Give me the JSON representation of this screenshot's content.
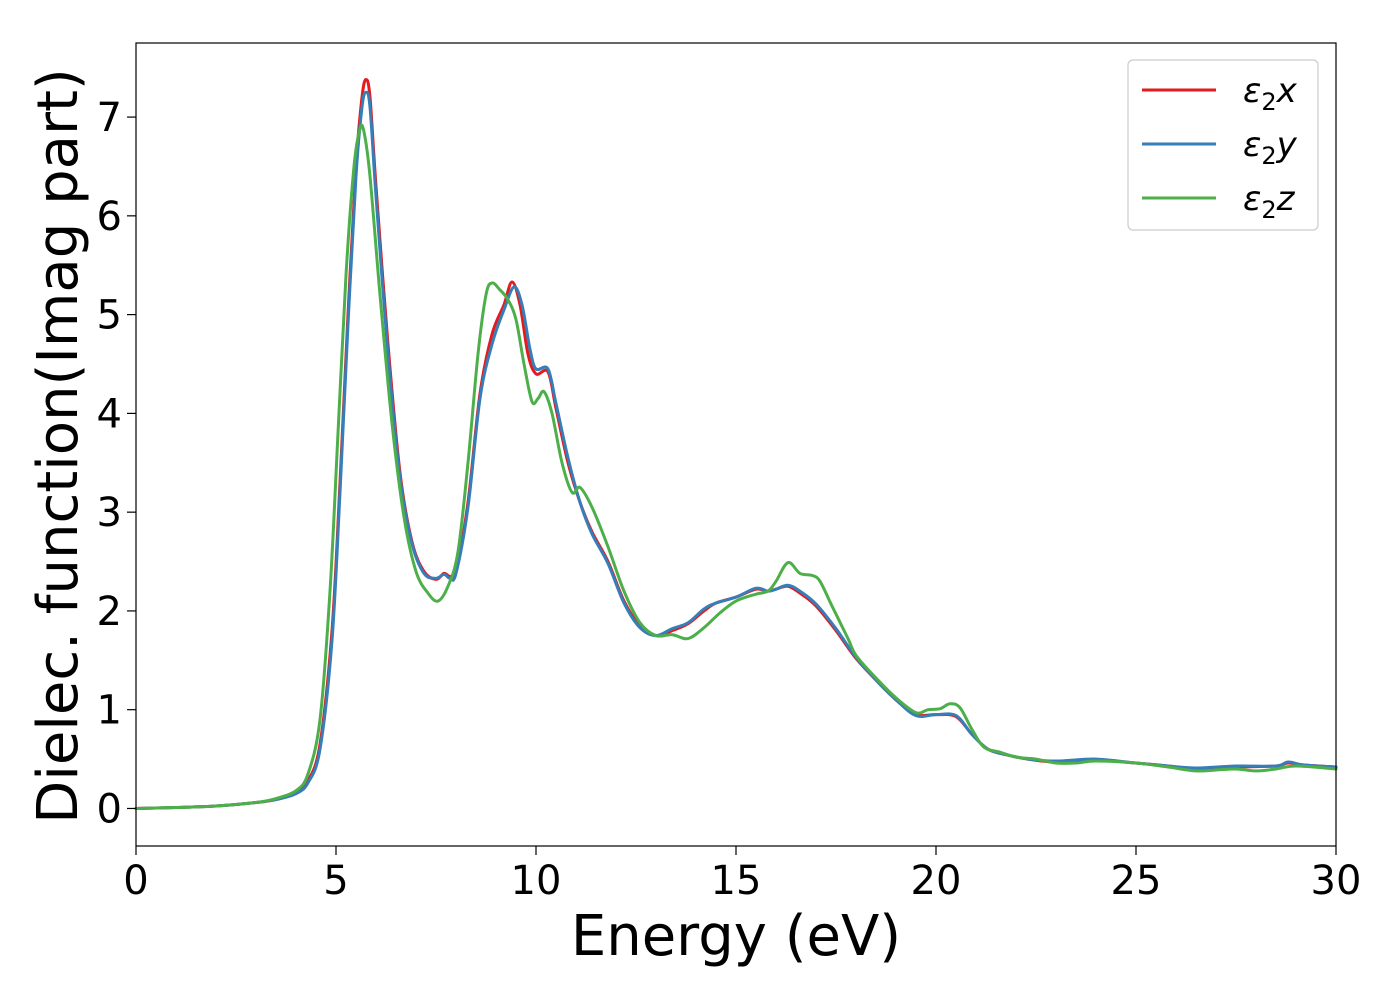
{
  "chart_data": {
    "type": "line",
    "title": "",
    "xlabel": "Energy (eV)",
    "ylabel": "Dielec. function(Imag part)",
    "xlim": [
      0,
      30
    ],
    "ylim": [
      -0.38,
      7.75
    ],
    "xticks": [
      0,
      5,
      10,
      15,
      20,
      25,
      30
    ],
    "yticks": [
      0,
      1,
      2,
      3,
      4,
      5,
      6,
      7
    ],
    "grid": false,
    "legend": "top-right",
    "series": [
      {
        "name": "ε₂x",
        "sym": "ε",
        "sub": "2",
        "var": "x",
        "color": "#e41a1c",
        "points": [
          [
            0,
            0
          ],
          [
            1,
            0.01
          ],
          [
            2,
            0.025
          ],
          [
            3,
            0.06
          ],
          [
            3.5,
            0.09
          ],
          [
            4,
            0.16
          ],
          [
            4.3,
            0.28
          ],
          [
            4.6,
            0.65
          ],
          [
            4.9,
            1.8
          ],
          [
            5.1,
            3.3
          ],
          [
            5.3,
            5.0
          ],
          [
            5.5,
            6.5
          ],
          [
            5.65,
            7.2
          ],
          [
            5.75,
            7.38
          ],
          [
            5.85,
            7.2
          ],
          [
            6.0,
            6.3
          ],
          [
            6.3,
            4.7
          ],
          [
            6.6,
            3.4
          ],
          [
            6.9,
            2.7
          ],
          [
            7.2,
            2.4
          ],
          [
            7.5,
            2.32
          ],
          [
            7.7,
            2.38
          ],
          [
            7.85,
            2.35
          ],
          [
            8.0,
            2.4
          ],
          [
            8.3,
            3.1
          ],
          [
            8.6,
            4.2
          ],
          [
            8.9,
            4.8
          ],
          [
            9.2,
            5.1
          ],
          [
            9.4,
            5.33
          ],
          [
            9.6,
            5.1
          ],
          [
            9.8,
            4.6
          ],
          [
            10.0,
            4.4
          ],
          [
            10.3,
            4.42
          ],
          [
            10.5,
            4.05
          ],
          [
            10.8,
            3.5
          ],
          [
            11.1,
            3.1
          ],
          [
            11.4,
            2.8
          ],
          [
            11.8,
            2.5
          ],
          [
            12.2,
            2.1
          ],
          [
            12.6,
            1.85
          ],
          [
            13.0,
            1.75
          ],
          [
            13.4,
            1.8
          ],
          [
            13.8,
            1.87
          ],
          [
            14.2,
            2.0
          ],
          [
            14.5,
            2.08
          ],
          [
            15.0,
            2.14
          ],
          [
            15.5,
            2.22
          ],
          [
            15.8,
            2.2
          ],
          [
            16.0,
            2.22
          ],
          [
            16.3,
            2.25
          ],
          [
            16.6,
            2.18
          ],
          [
            17.0,
            2.05
          ],
          [
            17.5,
            1.8
          ],
          [
            18.0,
            1.52
          ],
          [
            18.5,
            1.3
          ],
          [
            19.0,
            1.1
          ],
          [
            19.5,
            0.95
          ],
          [
            20.0,
            0.95
          ],
          [
            20.5,
            0.93
          ],
          [
            20.9,
            0.75
          ],
          [
            21.3,
            0.6
          ],
          [
            21.8,
            0.54
          ],
          [
            22.3,
            0.5
          ],
          [
            23.0,
            0.47
          ],
          [
            24.0,
            0.49
          ],
          [
            25.0,
            0.46
          ],
          [
            25.8,
            0.43
          ],
          [
            26.5,
            0.4
          ],
          [
            27.5,
            0.42
          ],
          [
            28.5,
            0.43
          ],
          [
            28.8,
            0.46
          ],
          [
            29.2,
            0.44
          ],
          [
            30,
            0.42
          ]
        ]
      },
      {
        "name": "ε₂y",
        "sym": "ε",
        "sub": "2",
        "var": "y",
        "color": "#377eb8",
        "points": [
          [
            0,
            0
          ],
          [
            1,
            0.01
          ],
          [
            2,
            0.025
          ],
          [
            3,
            0.06
          ],
          [
            3.5,
            0.09
          ],
          [
            4,
            0.15
          ],
          [
            4.3,
            0.26
          ],
          [
            4.6,
            0.6
          ],
          [
            4.9,
            1.7
          ],
          [
            5.1,
            3.2
          ],
          [
            5.3,
            4.9
          ],
          [
            5.5,
            6.4
          ],
          [
            5.65,
            7.1
          ],
          [
            5.75,
            7.25
          ],
          [
            5.85,
            7.1
          ],
          [
            6.0,
            6.2
          ],
          [
            6.3,
            4.6
          ],
          [
            6.6,
            3.35
          ],
          [
            6.9,
            2.68
          ],
          [
            7.2,
            2.38
          ],
          [
            7.5,
            2.33
          ],
          [
            7.7,
            2.37
          ],
          [
            7.85,
            2.33
          ],
          [
            8.0,
            2.38
          ],
          [
            8.3,
            3.05
          ],
          [
            8.6,
            4.15
          ],
          [
            8.9,
            4.7
          ],
          [
            9.2,
            5.05
          ],
          [
            9.45,
            5.28
          ],
          [
            9.65,
            5.1
          ],
          [
            9.85,
            4.65
          ],
          [
            10.0,
            4.45
          ],
          [
            10.3,
            4.45
          ],
          [
            10.5,
            4.1
          ],
          [
            10.8,
            3.55
          ],
          [
            11.1,
            3.1
          ],
          [
            11.4,
            2.78
          ],
          [
            11.8,
            2.48
          ],
          [
            12.2,
            2.08
          ],
          [
            12.6,
            1.83
          ],
          [
            13.0,
            1.75
          ],
          [
            13.4,
            1.82
          ],
          [
            13.8,
            1.88
          ],
          [
            14.2,
            2.02
          ],
          [
            14.5,
            2.08
          ],
          [
            15.0,
            2.14
          ],
          [
            15.5,
            2.23
          ],
          [
            15.8,
            2.2
          ],
          [
            16.0,
            2.22
          ],
          [
            16.3,
            2.26
          ],
          [
            16.6,
            2.2
          ],
          [
            17.0,
            2.07
          ],
          [
            17.5,
            1.82
          ],
          [
            18.0,
            1.53
          ],
          [
            18.5,
            1.3
          ],
          [
            19.0,
            1.1
          ],
          [
            19.5,
            0.94
          ],
          [
            20.0,
            0.95
          ],
          [
            20.5,
            0.94
          ],
          [
            20.9,
            0.75
          ],
          [
            21.3,
            0.6
          ],
          [
            21.8,
            0.54
          ],
          [
            22.3,
            0.5
          ],
          [
            23.0,
            0.48
          ],
          [
            24.0,
            0.5
          ],
          [
            25.0,
            0.46
          ],
          [
            25.8,
            0.43
          ],
          [
            26.5,
            0.41
          ],
          [
            27.5,
            0.43
          ],
          [
            28.5,
            0.43
          ],
          [
            28.8,
            0.47
          ],
          [
            29.2,
            0.44
          ],
          [
            30,
            0.42
          ]
        ]
      },
      {
        "name": "ε₂z",
        "sym": "ε",
        "sub": "2",
        "var": "z",
        "color": "#4daf4a",
        "points": [
          [
            0,
            0
          ],
          [
            1,
            0.01
          ],
          [
            2,
            0.025
          ],
          [
            3,
            0.06
          ],
          [
            3.5,
            0.1
          ],
          [
            4,
            0.18
          ],
          [
            4.3,
            0.35
          ],
          [
            4.6,
            0.9
          ],
          [
            4.85,
            2.2
          ],
          [
            5.05,
            3.8
          ],
          [
            5.25,
            5.4
          ],
          [
            5.45,
            6.5
          ],
          [
            5.6,
            6.88
          ],
          [
            5.7,
            6.85
          ],
          [
            5.85,
            6.4
          ],
          [
            6.1,
            5.2
          ],
          [
            6.4,
            3.9
          ],
          [
            6.7,
            2.95
          ],
          [
            7.0,
            2.4
          ],
          [
            7.3,
            2.18
          ],
          [
            7.55,
            2.1
          ],
          [
            7.8,
            2.25
          ],
          [
            8.05,
            2.6
          ],
          [
            8.3,
            3.5
          ],
          [
            8.55,
            4.6
          ],
          [
            8.75,
            5.2
          ],
          [
            8.9,
            5.32
          ],
          [
            9.1,
            5.25
          ],
          [
            9.3,
            5.15
          ],
          [
            9.5,
            4.95
          ],
          [
            9.7,
            4.5
          ],
          [
            9.9,
            4.12
          ],
          [
            10.05,
            4.15
          ],
          [
            10.2,
            4.22
          ],
          [
            10.4,
            4.0
          ],
          [
            10.65,
            3.5
          ],
          [
            10.9,
            3.2
          ],
          [
            11.1,
            3.25
          ],
          [
            11.4,
            3.05
          ],
          [
            11.8,
            2.65
          ],
          [
            12.2,
            2.2
          ],
          [
            12.6,
            1.88
          ],
          [
            13.0,
            1.75
          ],
          [
            13.4,
            1.76
          ],
          [
            13.8,
            1.72
          ],
          [
            14.2,
            1.83
          ],
          [
            14.6,
            1.98
          ],
          [
            15.0,
            2.1
          ],
          [
            15.5,
            2.17
          ],
          [
            15.8,
            2.2
          ],
          [
            16.0,
            2.3
          ],
          [
            16.3,
            2.49
          ],
          [
            16.6,
            2.38
          ],
          [
            16.9,
            2.36
          ],
          [
            17.1,
            2.3
          ],
          [
            17.4,
            2.05
          ],
          [
            17.8,
            1.72
          ],
          [
            18.0,
            1.55
          ],
          [
            18.5,
            1.32
          ],
          [
            19.0,
            1.12
          ],
          [
            19.5,
            0.97
          ],
          [
            19.8,
            1.0
          ],
          [
            20.1,
            1.01
          ],
          [
            20.35,
            1.06
          ],
          [
            20.6,
            1.02
          ],
          [
            20.9,
            0.8
          ],
          [
            21.2,
            0.62
          ],
          [
            21.6,
            0.57
          ],
          [
            22.0,
            0.52
          ],
          [
            22.5,
            0.5
          ],
          [
            23.0,
            0.46
          ],
          [
            23.5,
            0.46
          ],
          [
            24.0,
            0.48
          ],
          [
            25.0,
            0.46
          ],
          [
            25.8,
            0.42
          ],
          [
            26.5,
            0.38
          ],
          [
            27.0,
            0.39
          ],
          [
            27.5,
            0.4
          ],
          [
            28.0,
            0.38
          ],
          [
            28.5,
            0.4
          ],
          [
            29.0,
            0.43
          ],
          [
            30,
            0.4
          ]
        ]
      }
    ]
  }
}
